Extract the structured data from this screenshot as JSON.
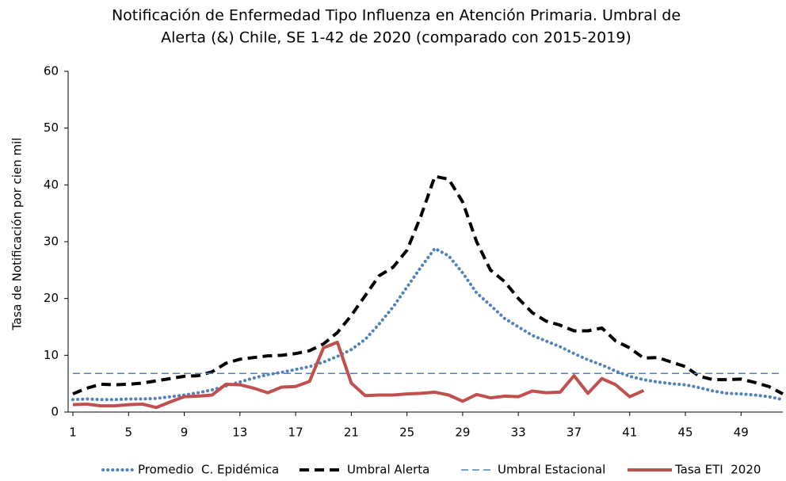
{
  "chart_data": {
    "type": "line",
    "title": [
      "Notificación de Enfermedad Tipo Influenza en Atención Primaria. Umbral de",
      "Alerta (&) Chile, SE 1-42 de 2020 (comparado con 2015-2019)"
    ],
    "y_label": "Tasa de Notificación por cien mil",
    "x": [
      1,
      2,
      3,
      4,
      5,
      6,
      7,
      8,
      9,
      10,
      11,
      12,
      13,
      14,
      15,
      16,
      17,
      18,
      19,
      20,
      21,
      22,
      23,
      24,
      25,
      26,
      27,
      28,
      29,
      30,
      31,
      32,
      33,
      34,
      35,
      36,
      37,
      38,
      39,
      40,
      41,
      42,
      43,
      44,
      45,
      46,
      47,
      48,
      49,
      50,
      51,
      52
    ],
    "xlim": [
      1,
      52
    ],
    "xticks": [
      1,
      5,
      9,
      13,
      17,
      21,
      25,
      29,
      33,
      37,
      41,
      45,
      49
    ],
    "ylim": [
      0,
      60
    ],
    "yticks": [
      0,
      10,
      20,
      30,
      40,
      50,
      60
    ],
    "grid": false,
    "legend": "bottom",
    "series": [
      {
        "name": "Promedio  C. Epidémica",
        "color": "#4f81bd",
        "style": "dotted",
        "values": [
          2.2,
          2.3,
          2.2,
          2.2,
          2.3,
          2.3,
          2.4,
          2.7,
          3.0,
          3.4,
          3.9,
          4.6,
          5.3,
          6.0,
          6.6,
          7.0,
          7.5,
          8.0,
          8.8,
          9.8,
          11.0,
          12.8,
          15.5,
          18.5,
          22.0,
          25.5,
          28.8,
          27.5,
          24.5,
          21.0,
          18.8,
          16.5,
          15.0,
          13.5,
          12.5,
          11.5,
          10.3,
          9.2,
          8.3,
          7.2,
          6.3,
          5.7,
          5.3,
          5.0,
          4.8,
          4.3,
          3.7,
          3.3,
          3.2,
          3.0,
          2.7,
          2.2
        ]
      },
      {
        "name": "Umbral Alerta",
        "color": "#000000",
        "style": "dashed",
        "values": [
          3.2,
          4.2,
          4.9,
          4.8,
          4.9,
          5.1,
          5.5,
          5.9,
          6.3,
          6.4,
          7.1,
          8.6,
          9.3,
          9.6,
          9.9,
          10.0,
          10.3,
          10.8,
          12.0,
          14.0,
          17.0,
          20.5,
          24.0,
          25.5,
          28.5,
          34.5,
          41.5,
          41.0,
          37.0,
          30.0,
          25.0,
          23.0,
          20.0,
          17.5,
          16.0,
          15.3,
          14.3,
          14.3,
          14.8,
          12.5,
          11.3,
          9.5,
          9.6,
          8.8,
          8.0,
          6.3,
          5.7,
          5.7,
          5.8,
          5.2,
          4.5,
          3.2
        ]
      },
      {
        "name": "Umbral Estacional",
        "color": "#4f81bd",
        "style": "thin-dashed",
        "values": [
          6.8,
          6.8,
          6.8,
          6.8,
          6.8,
          6.8,
          6.8,
          6.8,
          6.8,
          6.8,
          6.8,
          6.8,
          6.8,
          6.8,
          6.8,
          6.8,
          6.8,
          6.8,
          6.8,
          6.8,
          6.8,
          6.8,
          6.8,
          6.8,
          6.8,
          6.8,
          6.8,
          6.8,
          6.8,
          6.8,
          6.8,
          6.8,
          6.8,
          6.8,
          6.8,
          6.8,
          6.8,
          6.8,
          6.8,
          6.8,
          6.8,
          6.8,
          6.8,
          6.8,
          6.8,
          6.8,
          6.8,
          6.8,
          6.8,
          6.8,
          6.8,
          6.8
        ]
      },
      {
        "name": "Tasa ETI  2020",
        "color": "#c0504d",
        "style": "solid",
        "values": [
          1.3,
          1.4,
          1.1,
          1.1,
          1.3,
          1.4,
          0.8,
          1.8,
          2.7,
          2.8,
          3.0,
          4.9,
          4.8,
          4.2,
          3.4,
          4.4,
          4.5,
          5.4,
          11.3,
          12.3,
          5.1,
          2.9,
          3.0,
          3.0,
          3.2,
          3.3,
          3.5,
          3.0,
          1.9,
          3.1,
          2.5,
          2.8,
          2.7,
          3.7,
          3.4,
          3.5,
          6.4,
          3.3,
          5.9,
          4.8,
          2.7,
          3.8,
          null,
          null,
          null,
          null,
          null,
          null,
          null,
          null,
          null,
          null
        ]
      }
    ]
  }
}
